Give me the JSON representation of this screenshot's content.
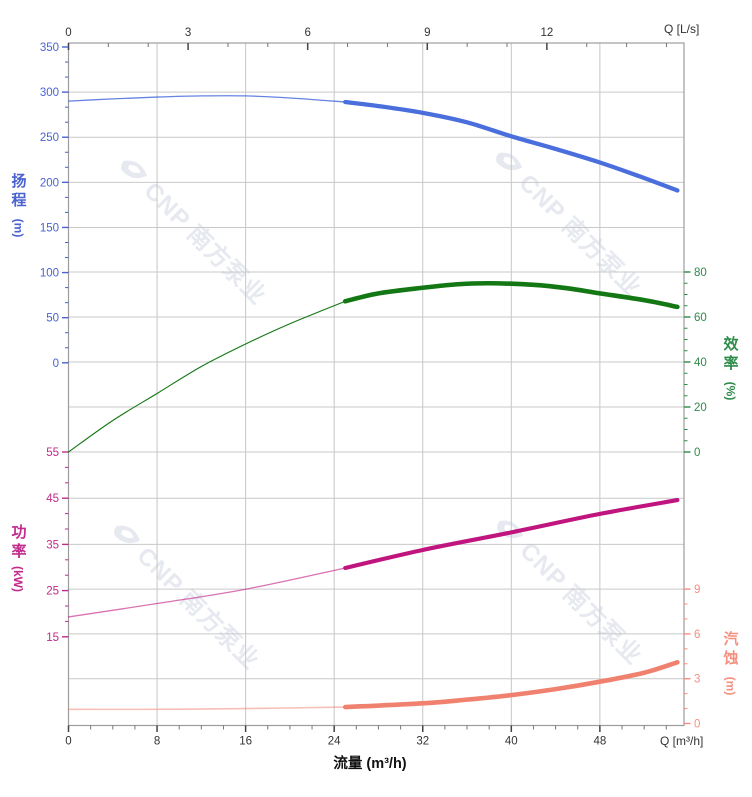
{
  "watermark": {
    "text": "CNP 南方泵业",
    "color": "#e6e9ef"
  },
  "chart_data": {
    "type": "line",
    "title": "",
    "x_axis_bottom": {
      "label": "Q [m³/h]",
      "title": "流量 (m³/h)",
      "range": [
        0,
        55.6
      ],
      "majors": [
        0,
        8,
        16,
        24,
        32,
        40,
        48
      ],
      "minor_step": 2
    },
    "x_axis_top": {
      "label": "Q [L/s]",
      "range": [
        0,
        15.44
      ],
      "majors": [
        0,
        3,
        6,
        9,
        12
      ],
      "minor_step": 1
    },
    "y_axes": [
      {
        "id": "head",
        "label": "扬程",
        "unit": "(m)",
        "range": [
          0,
          350
        ],
        "majors": [
          350,
          300,
          250,
          200,
          150,
          100,
          50,
          0
        ],
        "minors_per_interval": 2,
        "color": "#4a6edc",
        "tick_color": "#4a62d0"
      },
      {
        "id": "efficiency",
        "label": "效率",
        "unit": "(%)",
        "range": [
          0,
          80
        ],
        "majors": [
          80,
          60,
          40,
          20,
          0
        ],
        "minors_per_interval": 3,
        "color": "#137713",
        "tick_color": "#2e8b4a"
      },
      {
        "id": "power",
        "label": "功率",
        "unit": "(kW)",
        "range": [
          15,
          55
        ],
        "majors": [
          55,
          45,
          35,
          25,
          15
        ],
        "minors_per_interval": 2,
        "color": "#c0157e",
        "tick_color": "#c22a8c"
      },
      {
        "id": "npsh",
        "label": "汽蚀",
        "unit": "(m)",
        "range": [
          0,
          9
        ],
        "majors": [
          9,
          6,
          3,
          0
        ],
        "minors_per_interval": 2,
        "color": "#f0816e",
        "tick_color": "#f4907f"
      }
    ],
    "rated_range_start_q": 25,
    "series": [
      {
        "name": "扬程",
        "axis": "head",
        "color": "#4a6edc",
        "rated_from": 25,
        "points": [
          [
            0,
            290
          ],
          [
            4,
            292.5
          ],
          [
            8,
            294.5
          ],
          [
            12,
            295.8
          ],
          [
            16,
            295.8
          ],
          [
            20,
            293.5
          ],
          [
            25,
            289
          ],
          [
            28,
            284.5
          ],
          [
            32,
            277
          ],
          [
            36,
            266.5
          ],
          [
            40,
            251
          ],
          [
            44,
            237
          ],
          [
            48,
            222
          ],
          [
            51.5,
            207
          ],
          [
            55,
            191
          ]
        ]
      },
      {
        "name": "效率",
        "axis": "efficiency",
        "color": "#137713",
        "rated_from": 25,
        "points": [
          [
            0,
            0
          ],
          [
            4,
            14
          ],
          [
            8,
            26
          ],
          [
            12,
            38
          ],
          [
            16,
            48
          ],
          [
            20,
            57
          ],
          [
            25,
            67
          ],
          [
            28,
            70.5
          ],
          [
            32,
            73
          ],
          [
            35,
            74.5
          ],
          [
            38,
            75
          ],
          [
            42,
            74.3
          ],
          [
            45,
            72.8
          ],
          [
            48,
            70.5
          ],
          [
            52,
            67.5
          ],
          [
            55,
            64.5
          ]
        ]
      },
      {
        "name": "功率",
        "axis": "power",
        "color": "#c0157e",
        "rated_from": 25,
        "points": [
          [
            0,
            19.3
          ],
          [
            8,
            22.2
          ],
          [
            16,
            25.3
          ],
          [
            25,
            29.9
          ],
          [
            32,
            33.8
          ],
          [
            40,
            37.6
          ],
          [
            48,
            41.6
          ],
          [
            55,
            44.6
          ]
        ]
      },
      {
        "name": "汽蚀",
        "axis": "npsh",
        "color": "#f0816e",
        "rated_from": 25,
        "points": [
          [
            0,
            0.95
          ],
          [
            8,
            0.95
          ],
          [
            16,
            1.0
          ],
          [
            25,
            1.1
          ],
          [
            32,
            1.35
          ],
          [
            36,
            1.6
          ],
          [
            40,
            1.9
          ],
          [
            44,
            2.3
          ],
          [
            48,
            2.8
          ],
          [
            52,
            3.4
          ],
          [
            55,
            4.1
          ]
        ]
      }
    ]
  }
}
